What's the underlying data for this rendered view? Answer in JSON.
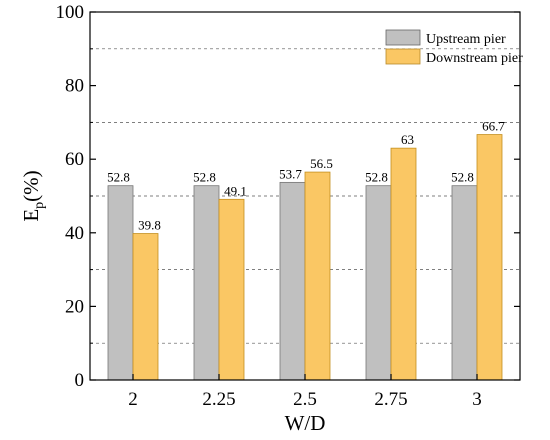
{
  "chart_data": {
    "type": "bar",
    "xlabel": "W/D",
    "ylabel_main": "E",
    "ylabel_sub": "p",
    "ylabel_suffix": "(%)",
    "ylim": [
      0,
      100
    ],
    "yticks": [
      "0",
      "20",
      "40",
      "60",
      "80",
      "100"
    ],
    "ytick_values": [
      0,
      20,
      40,
      60,
      80,
      100
    ],
    "grid": "dashed horizontal at 10,30,50,70,90",
    "legend_position": "top-right",
    "categories": [
      "2",
      "2.25",
      "2.5",
      "2.75",
      "3"
    ],
    "series": [
      {
        "name": "Upstream pier",
        "color": "#c0c0c0",
        "values": [
          52.8,
          52.8,
          53.7,
          52.8,
          52.8
        ],
        "labels": [
          "52.8",
          "52.8",
          "53.7",
          "52.8",
          "52.8"
        ]
      },
      {
        "name": "Downstream pier",
        "color": "#fac764",
        "values": [
          39.8,
          49.1,
          56.5,
          63,
          66.7
        ],
        "labels": [
          "39.8",
          "49.1",
          "56.5",
          "63",
          "66.7"
        ]
      }
    ]
  }
}
